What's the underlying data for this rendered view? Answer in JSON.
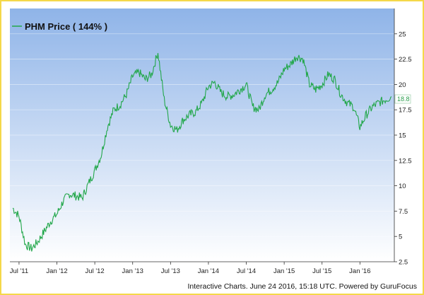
{
  "legend": {
    "label": "PHM Price ( 144% )"
  },
  "footer": "Interactive Charts. June 24 2016, 15:18 UTC. Powered by GuruFocus",
  "colors": {
    "line": "#22a74a",
    "bg_top": "#8fb4e8",
    "bg_bottom": "#ffffff",
    "border": "#f5d84a"
  },
  "chart_data": {
    "type": "line",
    "series": [
      {
        "name": "PHM Price",
        "x": [
          "2011-06",
          "2011-07",
          "2011-08",
          "2011-09",
          "2011-10",
          "2011-11",
          "2011-12",
          "2012-01",
          "2012-02",
          "2012-03",
          "2012-04",
          "2012-05",
          "2012-06",
          "2012-07",
          "2012-08",
          "2012-09",
          "2012-10",
          "2012-11",
          "2012-12",
          "2013-01",
          "2013-02",
          "2013-03",
          "2013-04",
          "2013-05",
          "2013-06",
          "2013-07",
          "2013-08",
          "2013-09",
          "2013-10",
          "2013-11",
          "2013-12",
          "2014-01",
          "2014-02",
          "2014-03",
          "2014-04",
          "2014-05",
          "2014-06",
          "2014-07",
          "2014-08",
          "2014-09",
          "2014-10",
          "2014-11",
          "2014-12",
          "2015-01",
          "2015-02",
          "2015-03",
          "2015-04",
          "2015-05",
          "2015-06",
          "2015-07",
          "2015-08",
          "2015-09",
          "2015-10",
          "2015-11",
          "2015-12",
          "2016-01",
          "2016-02",
          "2016-03",
          "2016-04",
          "2016-05",
          "2016-06"
        ],
        "values": [
          7.8,
          7.0,
          4.2,
          3.8,
          4.5,
          5.5,
          6.5,
          7.2,
          8.5,
          9.2,
          9.0,
          8.8,
          10.2,
          11.5,
          13.0,
          15.8,
          17.5,
          18.0,
          19.0,
          20.8,
          21.2,
          20.5,
          21.0,
          23.2,
          18.5,
          16.0,
          15.5,
          16.5,
          17.0,
          17.3,
          18.2,
          19.8,
          20.2,
          19.2,
          18.8,
          19.0,
          19.5,
          20.0,
          17.8,
          17.5,
          19.0,
          19.5,
          20.2,
          21.5,
          22.0,
          22.8,
          22.5,
          20.0,
          19.5,
          20.0,
          21.0,
          20.5,
          19.0,
          18.2,
          17.8,
          15.8,
          17.0,
          17.8,
          18.2,
          18.5,
          18.8
        ]
      }
    ],
    "x_ticks": [
      "Jul '11",
      "Jan '12",
      "Jul '12",
      "Jan '13",
      "Jul '13",
      "Jan '14",
      "Jul '14",
      "Jan '15",
      "Jul '15",
      "Jan '16"
    ],
    "y_ticks": [
      "2.5",
      "5",
      "7.5",
      "10",
      "12.5",
      "15",
      "17.5",
      "20",
      "22.5",
      "25"
    ],
    "ylim": [
      2.5,
      27.5
    ],
    "last_value": "18.8",
    "grid": true,
    "legend_position": "top-left"
  }
}
